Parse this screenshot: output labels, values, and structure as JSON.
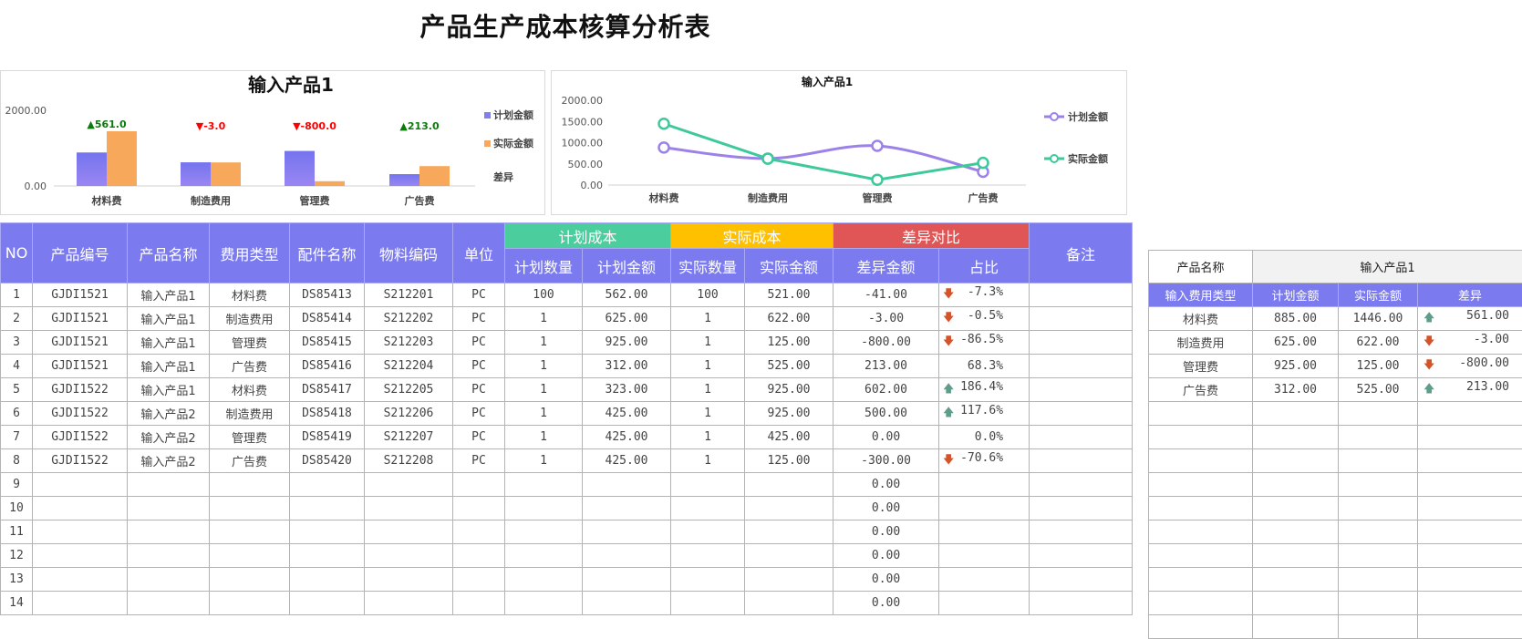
{
  "title": "产品生产成本核算分析表",
  "colors": {
    "header": "#7b7bef",
    "plan_group": "#4ccd9e",
    "actual_group": "#ffc000",
    "diff_group": "#e05656",
    "bar_plan": "#8080f0",
    "bar_actual": "#f7a85a",
    "line_plan": "#9c82e8",
    "line_actual": "#3ec99a",
    "up": "#5f9c8c",
    "down": "#d4542a",
    "label_up": "#0a7a0a",
    "label_down": "#ff0000"
  },
  "chart_data": [
    {
      "type": "bar",
      "title": "输入产品1",
      "categories": [
        "材料费",
        "制造费用",
        "管理费",
        "广告费"
      ],
      "series": [
        {
          "name": "计划金额",
          "values": [
            885,
            625,
            925,
            312
          ]
        },
        {
          "name": "实际金额",
          "values": [
            1446,
            622,
            125,
            525
          ]
        }
      ],
      "extra_legend": "差异",
      "data_labels": [
        "▲561.0",
        "▼-3.0",
        "▼-800.0",
        "▲213.0"
      ],
      "yticks": [
        "2000.00",
        "0.00"
      ],
      "ylim": [
        0,
        2000
      ],
      "legend": "right"
    },
    {
      "type": "line",
      "title": "输入产品1",
      "categories": [
        "材料费",
        "制造费用",
        "管理费",
        "广告费"
      ],
      "series": [
        {
          "name": "计划金额",
          "values": [
            885,
            625,
            925,
            312
          ]
        },
        {
          "name": "实际金额",
          "values": [
            1446,
            622,
            125,
            525
          ]
        }
      ],
      "yticks": [
        "2000.00",
        "1500.00",
        "1000.00",
        "500.00",
        "0.00"
      ],
      "ylim": [
        0,
        2000
      ],
      "legend": "right"
    }
  ],
  "main_table": {
    "headers": {
      "no": "NO",
      "code": "产品编号",
      "name": "产品名称",
      "type": "费用类型",
      "part": "配件名称",
      "material": "物料编码",
      "unit": "单位",
      "plan_group": "计划成本",
      "actual_group": "实际成本",
      "diff_group": "差异对比",
      "remark": "备注",
      "plan_qty": "计划数量",
      "plan_amt": "计划金额",
      "actual_qty": "实际数量",
      "actual_amt": "实际金额",
      "diff_amt": "差异金额",
      "ratio": "占比"
    },
    "rows": [
      [
        "1",
        "GJDI1521",
        "输入产品1",
        "材料费",
        "DS85413",
        "S212201",
        "PC",
        "100",
        "562.00",
        "100",
        "521.00",
        "-41.00",
        "-7.3%",
        "down"
      ],
      [
        "2",
        "GJDI1521",
        "输入产品1",
        "制造费用",
        "DS85414",
        "S212202",
        "PC",
        "1",
        "625.00",
        "1",
        "622.00",
        "-3.00",
        "-0.5%",
        "down"
      ],
      [
        "3",
        "GJDI1521",
        "输入产品1",
        "管理费",
        "DS85415",
        "S212203",
        "PC",
        "1",
        "925.00",
        "1",
        "125.00",
        "-800.00",
        "-86.5%",
        "down"
      ],
      [
        "4",
        "GJDI1521",
        "输入产品1",
        "广告费",
        "DS85416",
        "S212204",
        "PC",
        "1",
        "312.00",
        "1",
        "525.00",
        "213.00",
        "68.3%",
        ""
      ],
      [
        "5",
        "GJDI1522",
        "输入产品1",
        "材料费",
        "DS85417",
        "S212205",
        "PC",
        "1",
        "323.00",
        "1",
        "925.00",
        "602.00",
        "186.4%",
        "up"
      ],
      [
        "6",
        "GJDI1522",
        "输入产品2",
        "制造费用",
        "DS85418",
        "S212206",
        "PC",
        "1",
        "425.00",
        "1",
        "925.00",
        "500.00",
        "117.6%",
        "up"
      ],
      [
        "7",
        "GJDI1522",
        "输入产品2",
        "管理费",
        "DS85419",
        "S212207",
        "PC",
        "1",
        "425.00",
        "1",
        "425.00",
        "0.00",
        "0.0%",
        ""
      ],
      [
        "8",
        "GJDI1522",
        "输入产品2",
        "广告费",
        "DS85420",
        "S212208",
        "PC",
        "1",
        "425.00",
        "1",
        "125.00",
        "-300.00",
        "-70.6%",
        "down"
      ],
      [
        "9",
        "",
        "",
        "",
        "",
        "",
        "",
        "",
        "",
        "",
        "",
        "0.00",
        "",
        ""
      ],
      [
        "10",
        "",
        "",
        "",
        "",
        "",
        "",
        "",
        "",
        "",
        "",
        "0.00",
        "",
        ""
      ],
      [
        "11",
        "",
        "",
        "",
        "",
        "",
        "",
        "",
        "",
        "",
        "",
        "0.00",
        "",
        ""
      ],
      [
        "12",
        "",
        "",
        "",
        "",
        "",
        "",
        "",
        "",
        "",
        "",
        "0.00",
        "",
        ""
      ],
      [
        "13",
        "",
        "",
        "",
        "",
        "",
        "",
        "",
        "",
        "",
        "",
        "0.00",
        "",
        ""
      ],
      [
        "14",
        "",
        "",
        "",
        "",
        "",
        "",
        "",
        "",
        "",
        "",
        "0.00",
        "",
        ""
      ]
    ]
  },
  "side_table": {
    "product_label": "产品名称",
    "product_value": "输入产品1",
    "headers": [
      "输入费用类型",
      "计划金额",
      "实际金额",
      "差异"
    ],
    "rows": [
      [
        "材料费",
        "885.00",
        "1446.00",
        "561.00",
        "up"
      ],
      [
        "制造费用",
        "625.00",
        "622.00",
        "-3.00",
        "down"
      ],
      [
        "管理费",
        "925.00",
        "125.00",
        "-800.00",
        "down"
      ],
      [
        "广告费",
        "312.00",
        "525.00",
        "213.00",
        "up"
      ]
    ],
    "empty_rows": 10
  }
}
